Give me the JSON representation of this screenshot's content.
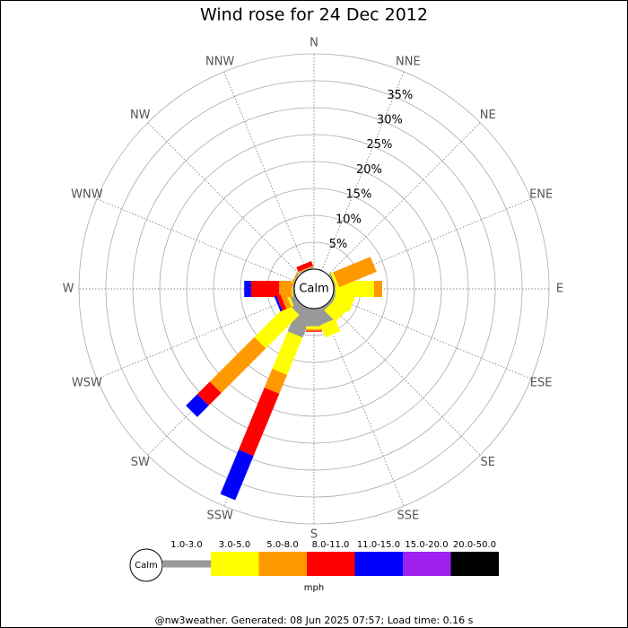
{
  "chart_data": {
    "type": "windrose",
    "title": "Wind rose for 24 Dec 2012",
    "calm_label": "Calm",
    "categories": [
      "N",
      "NNE",
      "NE",
      "ENE",
      "E",
      "ESE",
      "SE",
      "SSE",
      "S",
      "SSW",
      "SW",
      "WSW",
      "W",
      "WNW",
      "NW",
      "NNW"
    ],
    "rlim": [
      0,
      40
    ],
    "rticks": [
      {
        "value": 5,
        "label": "5%"
      },
      {
        "value": 10,
        "label": "10%"
      },
      {
        "value": 15,
        "label": "15%"
      },
      {
        "value": 20,
        "label": "20%"
      },
      {
        "value": 25,
        "label": "25%"
      },
      {
        "value": 30,
        "label": "30%"
      },
      {
        "value": 35,
        "label": "35%"
      }
    ],
    "series": [
      {
        "name": "1.0-3.0",
        "color": "#999999",
        "values": [
          0,
          0,
          0,
          0.3,
          0.3,
          0.5,
          0.5,
          3,
          3.3,
          5.5,
          1.7,
          1,
          0.3,
          0.2,
          0,
          0.2
        ]
      },
      {
        "name": "3.0-5.0",
        "color": "#ffff00",
        "values": [
          0,
          0,
          0,
          0.5,
          7.2,
          3.5,
          3,
          2.5,
          0.5,
          7.5,
          8.8,
          0.5,
          0.2,
          0,
          0,
          0
        ]
      },
      {
        "name": "5.0-8.0",
        "color": "#ff9900",
        "values": [
          0,
          0,
          0,
          7.5,
          1.5,
          0,
          0,
          0,
          0.3,
          3.8,
          11.7,
          1,
          2.3,
          0.3,
          0,
          0.2
        ]
      },
      {
        "name": "8.0-11.0",
        "color": "#ff0000",
        "values": [
          0,
          0,
          0,
          0,
          0,
          0,
          0,
          0,
          0.2,
          12.5,
          3.3,
          0.8,
          5.2,
          0,
          0,
          0.9
        ]
      },
      {
        "name": "11.0-15.0",
        "color": "#0000ff",
        "values": [
          0,
          0,
          0,
          0,
          0,
          0,
          0,
          0,
          0,
          8.9,
          3,
          0.4,
          1.3,
          0,
          0,
          0
        ]
      },
      {
        "name": "15.0-20.0",
        "color": "#a020f0",
        "values": [
          0,
          0,
          0,
          0,
          0,
          0,
          0,
          0,
          0,
          0,
          0,
          0,
          0,
          0,
          0,
          0
        ]
      },
      {
        "name": "20.0-50.0",
        "color": "#000000",
        "values": [
          0,
          0,
          0,
          0,
          0,
          0,
          0,
          0,
          0,
          0,
          0,
          0,
          0,
          0,
          0,
          0
        ]
      }
    ],
    "unit": "mph",
    "footer": "@nw3weather. Generated: 08 Jun 2025 07:57; Load time: 0.16 s"
  }
}
